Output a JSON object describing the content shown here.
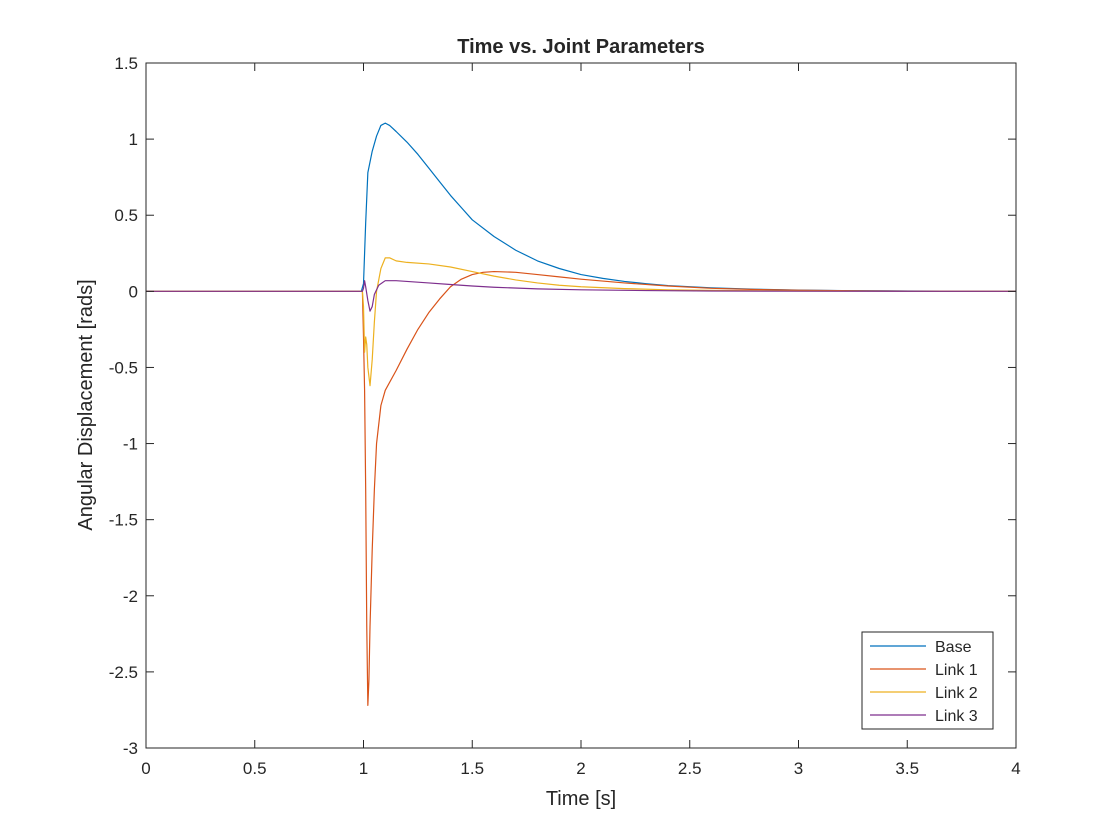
{
  "chart_data": {
    "type": "line",
    "title": "Time vs. Joint Parameters",
    "xlabel": "Time [s]",
    "ylabel": "Angular Displacement [rads]",
    "xlim": [
      0,
      4
    ],
    "ylim": [
      -3,
      1.5
    ],
    "xticks": [
      0,
      0.5,
      1,
      1.5,
      2,
      2.5,
      3,
      3.5,
      4
    ],
    "xtick_labels": [
      "0",
      "0.5",
      "1",
      "1.5",
      "2",
      "2.5",
      "3",
      "3.5",
      "4"
    ],
    "yticks": [
      -3,
      -2.5,
      -2,
      -1.5,
      -1,
      -0.5,
      0,
      0.5,
      1,
      1.5
    ],
    "ytick_labels": [
      "-3",
      "-2.5",
      "-2",
      "-1.5",
      "-1",
      "-0.5",
      "0",
      "0.5",
      "1",
      "1.5"
    ],
    "grid": false,
    "legend_position": "bottom-right",
    "series": [
      {
        "name": "Base",
        "color": "#0072BD",
        "points": [
          [
            0,
            0
          ],
          [
            0.99,
            0
          ],
          [
            1.0,
            0.05
          ],
          [
            1.01,
            0.45
          ],
          [
            1.02,
            0.78
          ],
          [
            1.04,
            0.92
          ],
          [
            1.06,
            1.02
          ],
          [
            1.08,
            1.09
          ],
          [
            1.1,
            1.105
          ],
          [
            1.12,
            1.09
          ],
          [
            1.15,
            1.05
          ],
          [
            1.2,
            0.98
          ],
          [
            1.25,
            0.9
          ],
          [
            1.3,
            0.81
          ],
          [
            1.35,
            0.72
          ],
          [
            1.4,
            0.63
          ],
          [
            1.45,
            0.55
          ],
          [
            1.5,
            0.47
          ],
          [
            1.6,
            0.36
          ],
          [
            1.7,
            0.27
          ],
          [
            1.8,
            0.2
          ],
          [
            1.9,
            0.15
          ],
          [
            2.0,
            0.11
          ],
          [
            2.1,
            0.085
          ],
          [
            2.2,
            0.065
          ],
          [
            2.3,
            0.05
          ],
          [
            2.4,
            0.038
          ],
          [
            2.5,
            0.03
          ],
          [
            2.6,
            0.023
          ],
          [
            2.8,
            0.014
          ],
          [
            3.0,
            0.008
          ],
          [
            3.2,
            0.005
          ],
          [
            3.5,
            0.002
          ],
          [
            4.0,
            0.0
          ]
        ]
      },
      {
        "name": "Link 1",
        "color": "#D95319",
        "points": [
          [
            0,
            0
          ],
          [
            0.995,
            0
          ],
          [
            1.0,
            -0.3
          ],
          [
            1.005,
            -0.65
          ],
          [
            1.01,
            -1.3
          ],
          [
            1.015,
            -2.2
          ],
          [
            1.02,
            -2.72
          ],
          [
            1.025,
            -2.55
          ],
          [
            1.03,
            -2.2
          ],
          [
            1.04,
            -1.7
          ],
          [
            1.05,
            -1.3
          ],
          [
            1.06,
            -1.0
          ],
          [
            1.08,
            -0.75
          ],
          [
            1.1,
            -0.65
          ],
          [
            1.15,
            -0.52
          ],
          [
            1.2,
            -0.38
          ],
          [
            1.25,
            -0.25
          ],
          [
            1.3,
            -0.14
          ],
          [
            1.35,
            -0.05
          ],
          [
            1.4,
            0.03
          ],
          [
            1.45,
            0.08
          ],
          [
            1.5,
            0.11
          ],
          [
            1.55,
            0.125
          ],
          [
            1.6,
            0.13
          ],
          [
            1.7,
            0.125
          ],
          [
            1.8,
            0.11
          ],
          [
            1.9,
            0.095
          ],
          [
            2.0,
            0.08
          ],
          [
            2.2,
            0.055
          ],
          [
            2.4,
            0.035
          ],
          [
            2.6,
            0.02
          ],
          [
            2.8,
            0.012
          ],
          [
            3.0,
            0.007
          ],
          [
            3.3,
            0.003
          ],
          [
            3.6,
            0.001
          ],
          [
            4.0,
            0.0
          ]
        ]
      },
      {
        "name": "Link 2",
        "color": "#EDB120",
        "points": [
          [
            0,
            0
          ],
          [
            0.995,
            0
          ],
          [
            1.0,
            -0.1
          ],
          [
            1.005,
            -0.4
          ],
          [
            1.01,
            -0.3
          ],
          [
            1.015,
            -0.35
          ],
          [
            1.02,
            -0.5
          ],
          [
            1.03,
            -0.62
          ],
          [
            1.04,
            -0.45
          ],
          [
            1.05,
            -0.2
          ],
          [
            1.06,
            0.0
          ],
          [
            1.08,
            0.15
          ],
          [
            1.1,
            0.22
          ],
          [
            1.12,
            0.22
          ],
          [
            1.15,
            0.2
          ],
          [
            1.2,
            0.19
          ],
          [
            1.3,
            0.18
          ],
          [
            1.4,
            0.16
          ],
          [
            1.5,
            0.13
          ],
          [
            1.6,
            0.1
          ],
          [
            1.7,
            0.075
          ],
          [
            1.8,
            0.055
          ],
          [
            1.9,
            0.04
          ],
          [
            2.0,
            0.03
          ],
          [
            2.2,
            0.018
          ],
          [
            2.4,
            0.01
          ],
          [
            2.7,
            0.005
          ],
          [
            3.0,
            0.002
          ],
          [
            4.0,
            0.0
          ]
        ]
      },
      {
        "name": "Link 3",
        "color": "#7E2F8E",
        "points": [
          [
            0,
            0
          ],
          [
            0.995,
            0
          ],
          [
            1.0,
            0.02
          ],
          [
            1.005,
            0.07
          ],
          [
            1.01,
            0.03
          ],
          [
            1.02,
            -0.06
          ],
          [
            1.03,
            -0.13
          ],
          [
            1.04,
            -0.1
          ],
          [
            1.05,
            -0.02
          ],
          [
            1.07,
            0.04
          ],
          [
            1.1,
            0.07
          ],
          [
            1.15,
            0.07
          ],
          [
            1.2,
            0.065
          ],
          [
            1.3,
            0.055
          ],
          [
            1.4,
            0.045
          ],
          [
            1.5,
            0.035
          ],
          [
            1.6,
            0.027
          ],
          [
            1.8,
            0.016
          ],
          [
            2.0,
            0.01
          ],
          [
            2.3,
            0.005
          ],
          [
            2.6,
            0.002
          ],
          [
            3.0,
            0.001
          ],
          [
            4.0,
            0.0
          ]
        ]
      }
    ]
  }
}
